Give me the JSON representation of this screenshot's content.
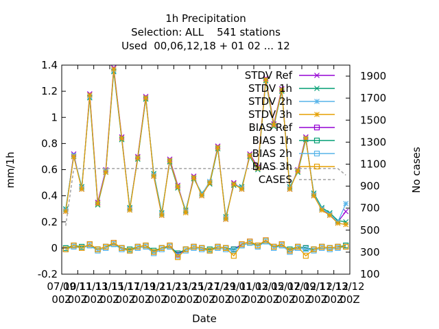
{
  "chart_data": {
    "type": "line",
    "title_lines": [
      "1h Precipitation",
      "Selection: ALL    541 stations",
      "Used  00,06,12,18 + 01 02 ... 12"
    ],
    "xlabel": "Date",
    "ylabel": "mm/1h",
    "y2label": "No cases",
    "ylim": [
      -0.2,
      1.4
    ],
    "y2lim": [
      100,
      2000
    ],
    "xlim": [
      0,
      36
    ],
    "yticks": [
      "-0.2",
      "0",
      "0.2",
      "0.4",
      "0.6",
      "0.8",
      "1",
      "1.2",
      "1.4"
    ],
    "y2ticks": [
      "100",
      "300",
      "500",
      "700",
      "900",
      "1100",
      "1300",
      "1500",
      "1700",
      "1900"
    ],
    "xticks": [
      {
        "top": "07/10",
        "bottom": "00Z"
      },
      {
        "top": "09/11",
        "bottom": "00Z"
      },
      {
        "top": "11/11",
        "bottom": "00Z"
      },
      {
        "top": "13/11",
        "bottom": "00Z"
      },
      {
        "top": "15/11",
        "bottom": "00Z"
      },
      {
        "top": "17/11",
        "bottom": "00Z"
      },
      {
        "top": "19/11",
        "bottom": "00Z"
      },
      {
        "top": "21/11",
        "bottom": "00Z"
      },
      {
        "top": "23/11",
        "bottom": "00Z"
      },
      {
        "top": "25/11",
        "bottom": "00Z"
      },
      {
        "top": "27/11",
        "bottom": "00Z"
      },
      {
        "top": "29/11",
        "bottom": "00Z"
      },
      {
        "top": "01/12",
        "bottom": "00Z"
      },
      {
        "top": "03/12",
        "bottom": "00Z"
      },
      {
        "top": "05/12",
        "bottom": "00Z"
      },
      {
        "top": "07/12",
        "bottom": "00Z"
      },
      {
        "top": "09/12",
        "bottom": "00Z"
      },
      {
        "top": "11/12",
        "bottom": "00Z"
      },
      {
        "top": "13/12",
        "bottom": "00Z"
      }
    ],
    "legend_position": "top-right",
    "series": [
      {
        "name": "STDV Ref",
        "kind": "stdv",
        "marker": "cross",
        "color": "#9400d3",
        "values": [
          0.28,
          0.72,
          0.45,
          1.18,
          0.35,
          0.6,
          1.38,
          0.85,
          0.3,
          0.7,
          1.16,
          0.55,
          0.25,
          0.68,
          0.48,
          0.28,
          0.55,
          0.4,
          0.5,
          0.78,
          0.22,
          0.5,
          0.45,
          0.72,
          0.62,
          1.3,
          0.95,
          1.22,
          0.45,
          0.6,
          0.85,
          0.4,
          0.3,
          0.25,
          0.2,
          0.28
        ]
      },
      {
        "name": "STDV 1h",
        "kind": "stdv",
        "marker": "x",
        "color": "#009e73",
        "values": [
          0.3,
          0.7,
          0.47,
          1.15,
          0.33,
          0.58,
          1.35,
          0.83,
          0.31,
          0.68,
          1.14,
          0.57,
          0.27,
          0.66,
          0.46,
          0.29,
          0.53,
          0.42,
          0.49,
          0.76,
          0.24,
          0.48,
          0.47,
          0.7,
          0.6,
          1.28,
          0.93,
          1.2,
          0.47,
          0.58,
          0.83,
          0.42,
          0.31,
          0.27,
          0.21,
          0.2
        ]
      },
      {
        "name": "STDV 2h",
        "kind": "stdv",
        "marker": "star",
        "color": "#56b4e9",
        "values": [
          0.29,
          0.71,
          0.46,
          1.16,
          0.34,
          0.59,
          1.36,
          0.84,
          0.3,
          0.69,
          1.15,
          0.56,
          0.26,
          0.67,
          0.47,
          0.28,
          0.54,
          0.41,
          0.51,
          0.77,
          0.23,
          0.49,
          0.46,
          0.71,
          0.61,
          1.29,
          0.94,
          1.21,
          0.46,
          0.59,
          0.84,
          0.41,
          0.3,
          0.26,
          0.2,
          0.34
        ]
      },
      {
        "name": "STDV 3h",
        "kind": "stdv",
        "marker": "star",
        "color": "#e69f00",
        "values": [
          0.28,
          0.7,
          0.45,
          1.17,
          0.34,
          0.58,
          1.37,
          0.84,
          0.29,
          0.69,
          1.15,
          0.55,
          0.25,
          0.67,
          0.47,
          0.27,
          0.54,
          0.4,
          0.5,
          0.77,
          0.22,
          0.49,
          0.45,
          0.71,
          0.61,
          1.29,
          0.94,
          1.21,
          0.45,
          0.59,
          0.84,
          0.4,
          0.29,
          0.25,
          0.19,
          0.18
        ]
      },
      {
        "name": "BIAS Ref",
        "kind": "bias",
        "marker": "square",
        "color": "#9400d3",
        "values": [
          -0.01,
          0.02,
          0.0,
          0.03,
          -0.01,
          0.01,
          0.04,
          0.0,
          -0.02,
          0.01,
          0.02,
          -0.03,
          0.0,
          0.02,
          -0.05,
          -0.01,
          0.01,
          0.0,
          -0.02,
          0.01,
          0.0,
          -0.01,
          0.03,
          0.05,
          0.02,
          0.06,
          0.01,
          0.03,
          -0.02,
          0.01,
          0.0,
          -0.01,
          0.01,
          0.0,
          0.01,
          0.01
        ]
      },
      {
        "name": "BIAS 1h",
        "kind": "bias",
        "marker": "square",
        "color": "#009e73",
        "values": [
          0.0,
          0.02,
          0.01,
          0.02,
          -0.01,
          0.01,
          0.03,
          0.0,
          -0.01,
          0.01,
          0.02,
          -0.02,
          0.0,
          0.01,
          -0.04,
          -0.01,
          0.01,
          0.0,
          -0.01,
          0.01,
          0.0,
          -0.01,
          0.02,
          0.04,
          0.02,
          0.05,
          0.01,
          0.02,
          -0.01,
          0.01,
          0.0,
          -0.01,
          0.01,
          0.0,
          0.01,
          0.02
        ]
      },
      {
        "name": "BIAS 2h",
        "kind": "bias",
        "marker": "square",
        "color": "#56b4e9",
        "values": [
          -0.01,
          0.01,
          0.0,
          0.02,
          -0.02,
          0.0,
          0.03,
          -0.01,
          -0.02,
          0.0,
          0.01,
          -0.04,
          -0.01,
          0.01,
          -0.06,
          -0.02,
          0.0,
          -0.01,
          -0.02,
          0.0,
          -0.01,
          -0.02,
          0.02,
          0.04,
          0.01,
          0.05,
          0.0,
          0.02,
          -0.03,
          0.0,
          -0.01,
          -0.02,
          0.0,
          -0.01,
          0.0,
          0.01
        ]
      },
      {
        "name": "BIAS 3h",
        "kind": "bias",
        "marker": "square",
        "color": "#e69f00",
        "values": [
          -0.01,
          0.02,
          0.0,
          0.03,
          -0.01,
          0.01,
          0.04,
          0.0,
          -0.02,
          0.01,
          0.02,
          -0.03,
          0.0,
          0.02,
          -0.07,
          -0.01,
          0.01,
          0.0,
          -0.02,
          0.01,
          0.0,
          -0.06,
          0.03,
          0.05,
          0.02,
          0.06,
          0.01,
          0.03,
          -0.02,
          0.01,
          -0.06,
          -0.01,
          0.01,
          0.0,
          0.01,
          0.01
        ]
      },
      {
        "name": "CASES",
        "kind": "cases",
        "marker": "none",
        "color": "#a0a0a0",
        "values": [
          540,
          1060,
          1060,
          1060,
          1060,
          1060,
          1060,
          1060,
          1060,
          1060,
          1060,
          1060,
          1060,
          1060,
          1060,
          1060,
          1060,
          1060,
          1060,
          1060,
          1060,
          1060,
          1060,
          1060,
          1060,
          1060,
          1060,
          1060,
          1060,
          1060,
          1060,
          1060,
          1060,
          1060,
          1060,
          1000
        ]
      }
    ]
  }
}
